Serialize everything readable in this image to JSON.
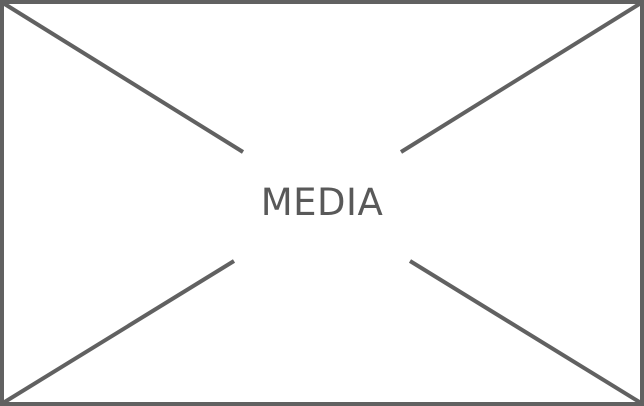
{
  "media": {
    "label": "MEDIA",
    "icon": "media-placeholder-icon"
  },
  "colors": {
    "stroke": "#616161",
    "text": "#595959",
    "background": "#ffffff"
  }
}
